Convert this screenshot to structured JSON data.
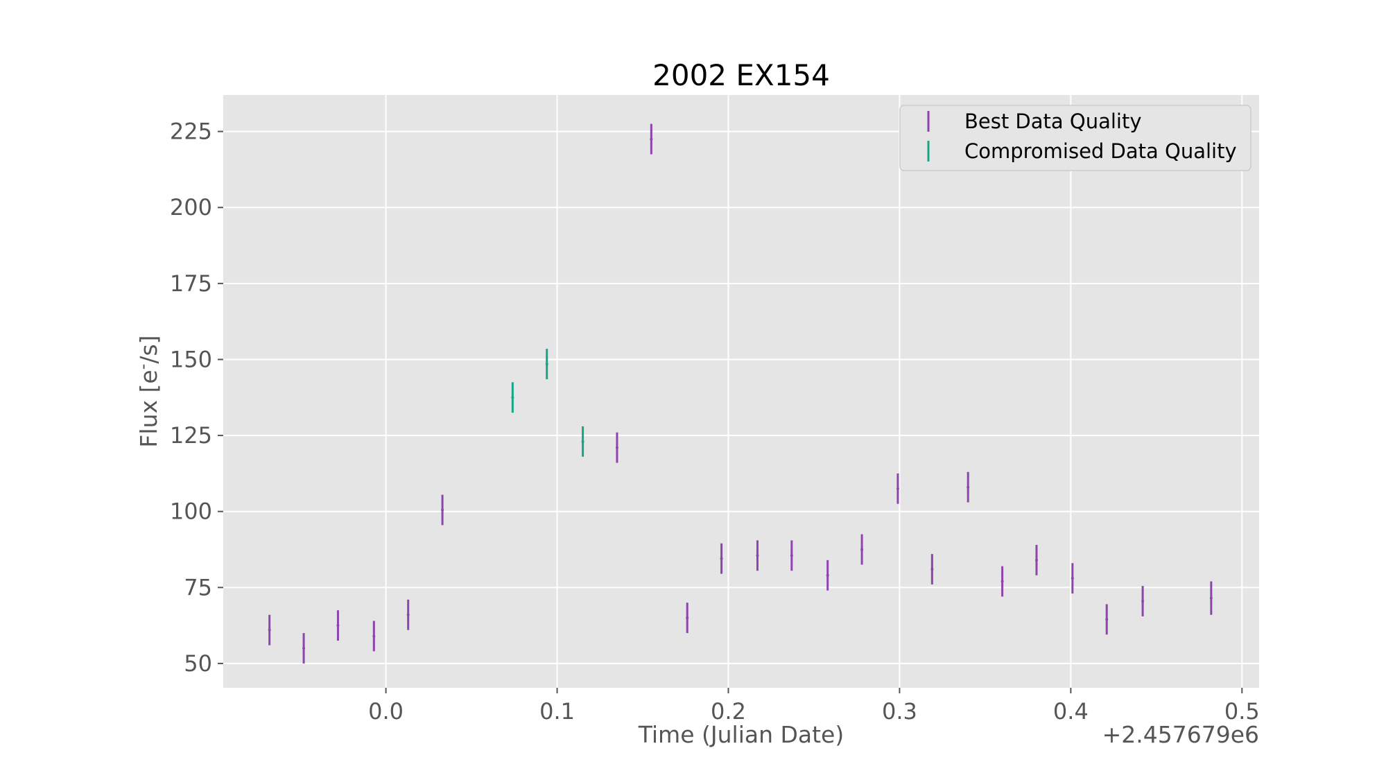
{
  "chart_data": {
    "type": "scatter",
    "title": "2002 EX154",
    "xlabel": "Time (Julian Date)",
    "ylabel": "Flux [e$^-$/s]",
    "x_offset_label": "+2.457679e6",
    "xlim": [
      -0.095,
      0.51
    ],
    "ylim": [
      42,
      237
    ],
    "xticks": [
      0.0,
      0.1,
      0.2,
      0.3,
      0.4,
      0.5
    ],
    "xtick_labels": [
      "0.0",
      "0.1",
      "0.2",
      "0.3",
      "0.4",
      "0.5"
    ],
    "yticks": [
      50,
      75,
      100,
      125,
      150,
      175,
      200,
      225
    ],
    "ytick_labels": [
      "50",
      "75",
      "100",
      "125",
      "150",
      "175",
      "200",
      "225"
    ],
    "grid": true,
    "legend_position": "top-right",
    "series": [
      {
        "name": "Best Data Quality",
        "color": "#8e44ad",
        "points": [
          {
            "x": -0.068,
            "y": 61.0,
            "err": 5.0
          },
          {
            "x": -0.048,
            "y": 55.0,
            "err": 5.0
          },
          {
            "x": -0.028,
            "y": 62.5,
            "err": 5.0
          },
          {
            "x": -0.007,
            "y": 59.0,
            "err": 5.0
          },
          {
            "x": 0.013,
            "y": 66.0,
            "err": 5.0
          },
          {
            "x": 0.033,
            "y": 100.5,
            "err": 5.0
          },
          {
            "x": 0.135,
            "y": 121.0,
            "err": 5.0
          },
          {
            "x": 0.155,
            "y": 222.5,
            "err": 5.0
          },
          {
            "x": 0.176,
            "y": 65.0,
            "err": 5.0
          },
          {
            "x": 0.196,
            "y": 84.5,
            "err": 5.0
          },
          {
            "x": 0.217,
            "y": 85.5,
            "err": 5.0
          },
          {
            "x": 0.237,
            "y": 85.5,
            "err": 5.0
          },
          {
            "x": 0.258,
            "y": 79.0,
            "err": 5.0
          },
          {
            "x": 0.278,
            "y": 87.5,
            "err": 5.0
          },
          {
            "x": 0.299,
            "y": 107.5,
            "err": 5.0
          },
          {
            "x": 0.319,
            "y": 81.0,
            "err": 5.0
          },
          {
            "x": 0.34,
            "y": 108.0,
            "err": 5.0
          },
          {
            "x": 0.36,
            "y": 77.0,
            "err": 5.0
          },
          {
            "x": 0.38,
            "y": 84.0,
            "err": 5.0
          },
          {
            "x": 0.401,
            "y": 78.0,
            "err": 5.0
          },
          {
            "x": 0.421,
            "y": 64.5,
            "err": 5.0
          },
          {
            "x": 0.442,
            "y": 70.5,
            "err": 5.0
          },
          {
            "x": 0.482,
            "y": 71.5,
            "err": 5.5
          }
        ]
      },
      {
        "name": "Compromised Data Quality",
        "color": "#17a589",
        "points": [
          {
            "x": 0.074,
            "y": 137.5,
            "err": 5.0
          },
          {
            "x": 0.094,
            "y": 148.5,
            "err": 5.0
          },
          {
            "x": 0.115,
            "y": 123.0,
            "err": 5.0
          }
        ]
      }
    ]
  }
}
